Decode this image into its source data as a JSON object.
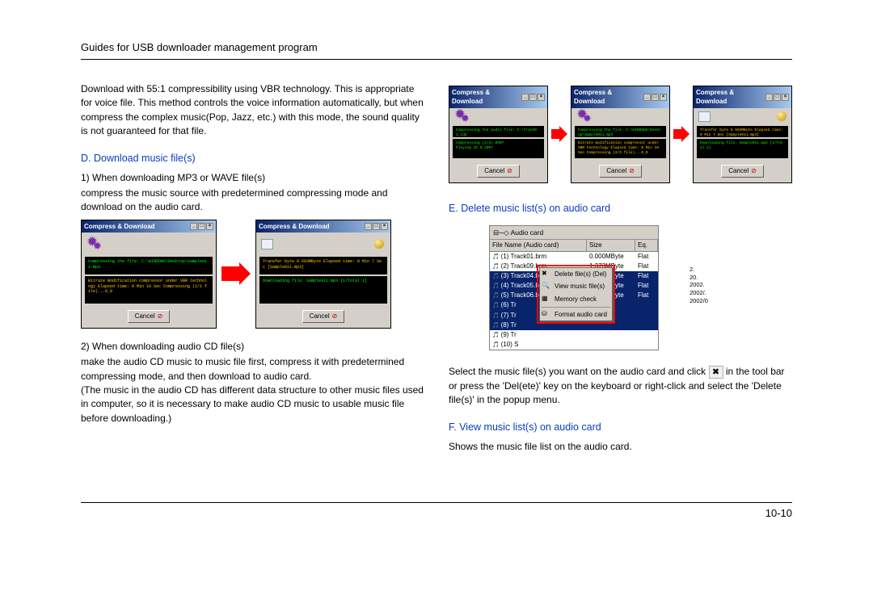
{
  "header": {
    "title": "Guides for USB downloader management program"
  },
  "page_number": "10-10",
  "left": {
    "intro": "Download with 55:1 compressibility using VBR technology. This is appropriate for voice file. This method controls the voice information automatically, but when compress the complex music(Pop, Jazz, etc.) with this mode, the sound quality is not guaranteed for that file.",
    "sec_d_title": "D.  Download music file(s)",
    "sec_d1_head": "1)  When downloading MP3 or WAVE file(s)",
    "sec_d1_body": "compress the music source with predetermined compressing mode and  download on the audio card.",
    "sec_d2_head": "2)  When downloading audio CD file(s)",
    "sec_d2_body1": "make the audio CD music to music file first, compress it with predetermined compressing mode, and then download to audio card.",
    "sec_d2_body2": "(The music in the audio CD has different data structure to other music files used in computer, so it is necessary to make audio CD music to usable music file before downloading.)"
  },
  "right": {
    "sec_e_title": "E. Delete music list(s) on audio card",
    "sec_e_body_a": "Select the music file(s) you want on the audio card  and click ",
    "sec_e_body_b": " in the tool bar or press the 'Del(ete)' key on the keyboard  or right-click and select the 'Delete file(s)' in the popup menu.",
    "sec_f_title": "F. View music list(s) on audio card",
    "sec_f_body": "Shows the music file list on the audio card."
  },
  "dialog": {
    "title": "Compress & Download",
    "cancel": "Cancel",
    "box1a": "Compressing the file: C:\\WINDOWS\\Desktop\\Sample011.mp3",
    "box1b": "Bitrate modification compressor under VBR technology\nElapsed time: 0 Min 10 Sec\nCompressing (1/1 file)...0_0",
    "box2a": "Transfer byte 0.593MByte Elapsed time: 0 Min 7 Sec [Sample011.mp3]",
    "box2b": "Downloading file: Sample011.mp3 [1/Total 1]",
    "sm_a": "Compressing the audio file: C:\\Track01.cda",
    "sm_b1": "Compressing (2/3).0307",
    "sm_b2": "Playing CD 0.3307",
    "sm2_a": "Compressing the file: C:\\WINDOWS\\Desktop\\Sample011.mp3",
    "sm2_b": "Bitrate modification compressor under VBR technology\nElapsed time: 0 Min 10 Sec\nCompressing (2/3 file)...0_0",
    "sm3_a": "Transfer byte 0.593MByte Elapsed time: 0 Min 7 Sec [Sample011.mp3]",
    "sm3_b": "Downloading file: Sample011.mp3 [1/Total 1]"
  },
  "audiocard": {
    "tree_label": "Audio card",
    "cols": {
      "fn": "File Name (Audio card)",
      "sz": "Size",
      "eq": "Eq."
    },
    "rows": [
      {
        "fn": "(1) Track01.brm",
        "sz": "0.000MByte",
        "eq": "Flat",
        "sel": false
      },
      {
        "fn": "(2) Track09.brm",
        "sz": "1.373MByte",
        "eq": "Flat",
        "sel": false
      },
      {
        "fn": "(3) Track04.brm",
        "sz": "1.373MByte",
        "eq": "Flat",
        "sel": true
      },
      {
        "fn": "(4) Track05.brm",
        "sz": "1.373MByte",
        "eq": "Flat",
        "sel": true
      },
      {
        "fn": "(5) Track06.brm",
        "sz": "1.373MByte",
        "eq": "Flat",
        "sel": true
      },
      {
        "fn": "(6) Tr",
        "sz": "",
        "eq": "",
        "sel": true
      },
      {
        "fn": "(7) Tr",
        "sz": "",
        "eq": "",
        "sel": true
      },
      {
        "fn": "(8) Tr",
        "sz": "",
        "eq": "",
        "sel": true
      },
      {
        "fn": "(9) Tr",
        "sz": "",
        "eq": "",
        "sel": false
      },
      {
        "fn": "(10) S",
        "sz": "",
        "eq": "",
        "sel": false
      }
    ],
    "menu": {
      "m1": "Delete file(s)   (Del)",
      "m2": "View music file(s)",
      "m3": "Memory check",
      "m4": "Format audio card"
    },
    "sidenums": [
      "2.",
      "20.",
      "2002.",
      "2002/.",
      "2002/0"
    ]
  },
  "toolbar_icon": "✖"
}
